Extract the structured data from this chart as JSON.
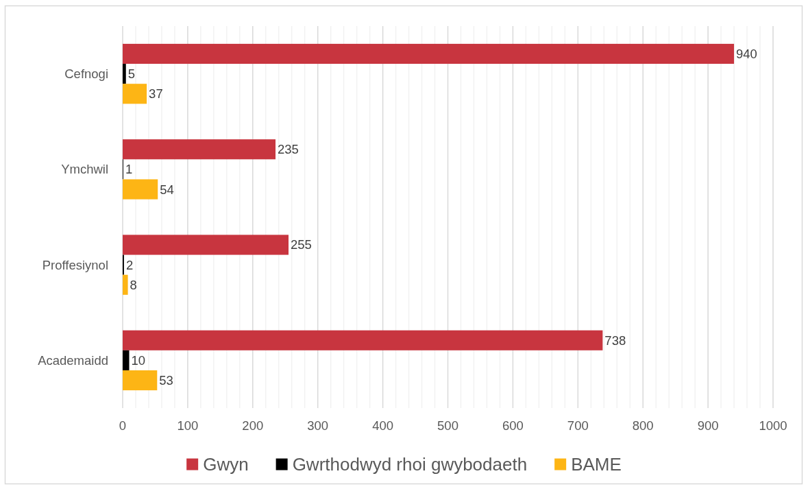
{
  "chart_data": {
    "type": "bar",
    "orientation": "horizontal",
    "categories": [
      "Cefnogi",
      "Ymchwil",
      "Proffesiynol",
      "Academaidd"
    ],
    "series": [
      {
        "name": "Gwyn",
        "color": "#c8353f",
        "values": [
          940,
          235,
          255,
          738
        ]
      },
      {
        "name": "Gwrthodwyd rhoi gwybodaeth",
        "color": "#000000",
        "values": [
          5,
          1,
          2,
          10
        ]
      },
      {
        "name": "BAME",
        "color": "#fdb515",
        "values": [
          37,
          54,
          8,
          53
        ]
      }
    ],
    "xlim": [
      0,
      1000
    ],
    "xticks": [
      0,
      {
        "value": 20,
        "label": null
      },
      {
        "value": 40,
        "label": null
      },
      {
        "value": 60,
        "label": null
      },
      {
        "value": 80,
        "label": null
      },
      100,
      {
        "value": 120,
        "label": null
      },
      {
        "value": 140,
        "label": null
      },
      {
        "value": 160,
        "label": null
      },
      {
        "value": 180,
        "label": null
      },
      200,
      {
        "value": 220,
        "label": null
      },
      {
        "value": 240,
        "label": null
      },
      {
        "value": 260,
        "label": null
      },
      {
        "value": 280,
        "label": null
      },
      300,
      {
        "value": 320,
        "label": null
      },
      {
        "value": 340,
        "label": null
      },
      {
        "value": 360,
        "label": null
      },
      {
        "value": 380,
        "label": null
      },
      400,
      {
        "value": 420,
        "label": null
      },
      {
        "value": 440,
        "label": null
      },
      {
        "value": 460,
        "label": null
      },
      {
        "value": 480,
        "label": null
      },
      500,
      {
        "value": 520,
        "label": null
      },
      {
        "value": 540,
        "label": null
      },
      {
        "value": 560,
        "label": null
      },
      {
        "value": 580,
        "label": null
      },
      600,
      {
        "value": 620,
        "label": null
      },
      {
        "value": 640,
        "label": null
      },
      {
        "value": 660,
        "label": null
      },
      {
        "value": 680,
        "label": null
      },
      700,
      {
        "value": 720,
        "label": null
      },
      {
        "value": 740,
        "label": null
      },
      {
        "value": 760,
        "label": null
      },
      {
        "value": 780,
        "label": null
      },
      800,
      {
        "value": 820,
        "label": null
      },
      {
        "value": 840,
        "label": null
      },
      {
        "value": 860,
        "label": null
      },
      {
        "value": 880,
        "label": null
      },
      900,
      {
        "value": 920,
        "label": null
      },
      {
        "value": 940,
        "label": null
      },
      {
        "value": 960,
        "label": null
      },
      {
        "value": 980,
        "label": null
      },
      1000
    ],
    "grid": "x",
    "legend": "bottom",
    "data_labels": true
  }
}
